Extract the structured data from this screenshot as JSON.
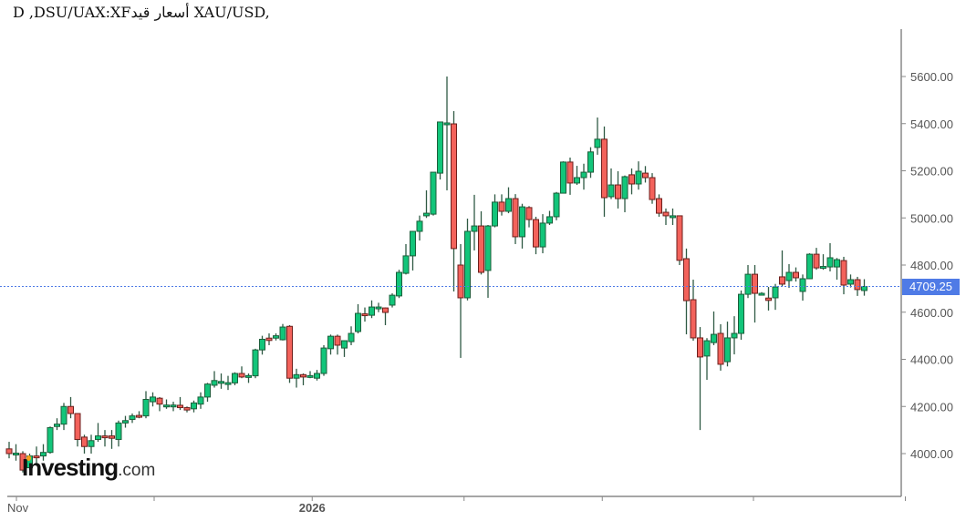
{
  "header": {
    "title": "D ,DSU/UAX:XFأسعار قيد XAU/USD,"
  },
  "logo": {
    "brand": "Investing",
    "domain": ".com"
  },
  "colors": {
    "up": "#12c57a",
    "up_border": "#1b5e3a",
    "down": "#f3625b",
    "down_border": "#6e1f1c",
    "wick": "#2f5a44",
    "last_price": "#4f7be6",
    "axis": "#888888"
  },
  "chart_data": {
    "type": "candlestick",
    "title": "",
    "ylim": [
      3880,
      5780
    ],
    "y_ticks": [
      4000,
      4200,
      4400,
      4600,
      4800,
      5000,
      5200,
      5400,
      5600
    ],
    "y_tick_labels": [
      "4000.00",
      "4200.00",
      "4400.00",
      "4600.00",
      "4800.00",
      "5000.00",
      "5200.00",
      "5400.00",
      "5600.00"
    ],
    "x_tick_labels": [
      "Nov",
      "",
      "2026",
      "",
      "",
      "",
      ""
    ],
    "last_price": 4709.25,
    "last_price_label": "4709.25",
    "grid": false,
    "ohlc_fields": [
      "open",
      "high",
      "low",
      "close"
    ],
    "candles": [
      [
        4020,
        4050,
        3980,
        4000
      ],
      [
        4000,
        4040,
        3970,
        4002
      ],
      [
        4000,
        4010,
        3920,
        3930
      ],
      [
        3940,
        4000,
        3930,
        3990
      ],
      [
        3990,
        4030,
        3960,
        3985
      ],
      [
        3990,
        4040,
        3970,
        4005
      ],
      [
        4005,
        4115,
        4000,
        4110
      ],
      [
        4115,
        4150,
        4100,
        4125
      ],
      [
        4125,
        4215,
        4100,
        4200
      ],
      [
        4200,
        4240,
        4150,
        4170
      ],
      [
        4170,
        4170,
        4030,
        4060
      ],
      [
        4070,
        4080,
        4000,
        4030
      ],
      [
        4030,
        4080,
        4000,
        4055
      ],
      [
        4060,
        4130,
        4050,
        4075
      ],
      [
        4075,
        4100,
        4030,
        4070
      ],
      [
        4075,
        4100,
        4020,
        4065
      ],
      [
        4060,
        4140,
        4030,
        4130
      ],
      [
        4130,
        4160,
        4110,
        4140
      ],
      [
        4145,
        4170,
        4130,
        4160
      ],
      [
        4162,
        4180,
        4150,
        4158
      ],
      [
        4160,
        4265,
        4150,
        4230
      ],
      [
        4220,
        4260,
        4200,
        4240
      ],
      [
        4235,
        4240,
        4180,
        4210
      ],
      [
        4204,
        4230,
        4190,
        4206
      ],
      [
        4204,
        4220,
        4180,
        4206
      ],
      [
        4205,
        4240,
        4185,
        4195
      ],
      [
        4195,
        4200,
        4175,
        4185
      ],
      [
        4190,
        4225,
        4175,
        4215
      ],
      [
        4210,
        4260,
        4190,
        4240
      ],
      [
        4240,
        4300,
        4220,
        4295
      ],
      [
        4290,
        4350,
        4280,
        4310
      ],
      [
        4304,
        4340,
        4275,
        4306
      ],
      [
        4299,
        4330,
        4270,
        4301
      ],
      [
        4300,
        4345,
        4290,
        4340
      ],
      [
        4340,
        4370,
        4320,
        4325
      ],
      [
        4329,
        4340,
        4300,
        4331
      ],
      [
        4330,
        4445,
        4320,
        4440
      ],
      [
        4440,
        4500,
        4420,
        4485
      ],
      [
        4490,
        4510,
        4460,
        4480
      ],
      [
        4490,
        4510,
        4480,
        4500
      ],
      [
        4483,
        4550,
        4480,
        4537
      ],
      [
        4540,
        4545,
        4300,
        4320
      ],
      [
        4320,
        4360,
        4280,
        4335
      ],
      [
        4335,
        4340,
        4290,
        4325
      ],
      [
        4329,
        4350,
        4320,
        4331
      ],
      [
        4320,
        4355,
        4310,
        4340
      ],
      [
        4340,
        4460,
        4330,
        4448
      ],
      [
        4445,
        4505,
        4420,
        4498
      ],
      [
        4498,
        4505,
        4420,
        4460
      ],
      [
        4448,
        4480,
        4410,
        4479
      ],
      [
        4475,
        4540,
        4460,
        4510
      ],
      [
        4518,
        4634,
        4510,
        4595
      ],
      [
        4593,
        4620,
        4560,
        4589
      ],
      [
        4587,
        4650,
        4575,
        4622
      ],
      [
        4619,
        4640,
        4600,
        4622
      ],
      [
        4618,
        4620,
        4545,
        4599
      ],
      [
        4630,
        4680,
        4620,
        4672
      ],
      [
        4669,
        4780,
        4660,
        4769
      ],
      [
        4765,
        4889,
        4760,
        4839
      ],
      [
        4839,
        4945,
        4777,
        4943
      ],
      [
        4943,
        5010,
        4904,
        4986
      ],
      [
        5009,
        5117,
        5000,
        5020
      ],
      [
        5016,
        5194,
        5010,
        5194
      ],
      [
        5190,
        5407,
        5163,
        5407
      ],
      [
        5401,
        5600,
        5117,
        5403
      ],
      [
        5399,
        5453,
        4688,
        4870
      ],
      [
        4800,
        4889,
        4406,
        4661
      ],
      [
        4661,
        4997,
        4650,
        4943
      ],
      [
        4943,
        5098,
        4862,
        4966
      ],
      [
        4966,
        5028,
        4760,
        4769
      ],
      [
        4777,
        4970,
        4661,
        4966
      ],
      [
        4966,
        5100,
        4960,
        5067
      ],
      [
        5067,
        5100,
        5010,
        5028
      ],
      [
        5028,
        5130,
        5020,
        5082
      ],
      [
        5082,
        5101,
        4889,
        4920
      ],
      [
        4920,
        5060,
        4870,
        5047
      ],
      [
        5044,
        5050,
        4960,
        4993
      ],
      [
        4993,
        5005,
        4846,
        4877
      ],
      [
        4877,
        5016,
        4850,
        4978
      ],
      [
        4978,
        5030,
        4970,
        5005
      ],
      [
        5005,
        5110,
        4990,
        5105
      ],
      [
        5105,
        5240,
        5105,
        5237
      ],
      [
        5237,
        5256,
        5098,
        5148
      ],
      [
        5148,
        5221,
        5140,
        5171
      ],
      [
        5171,
        5230,
        5120,
        5194
      ],
      [
        5194,
        5300,
        5170,
        5280
      ],
      [
        5299,
        5426,
        5268,
        5334
      ],
      [
        5334,
        5388,
        5005,
        5086
      ],
      [
        5090,
        5210,
        5080,
        5140
      ],
      [
        5140,
        5198,
        5040,
        5082
      ],
      [
        5082,
        5180,
        5024,
        5175
      ],
      [
        5183,
        5210,
        5100,
        5144
      ],
      [
        5144,
        5240,
        5120,
        5198
      ],
      [
        5190,
        5220,
        5150,
        5171
      ],
      [
        5171,
        5190,
        5060,
        5078
      ],
      [
        5082,
        5100,
        5005,
        5020
      ],
      [
        5024,
        5040,
        4970,
        5009
      ],
      [
        5007,
        5040,
        4970,
        5009
      ],
      [
        5009,
        5010,
        4800,
        4820
      ],
      [
        4827,
        4870,
        4506,
        4649
      ],
      [
        4653,
        4738,
        4479,
        4491
      ],
      [
        4491,
        4537,
        4100,
        4410
      ],
      [
        4414,
        4490,
        4313,
        4479
      ],
      [
        4471,
        4603,
        4460,
        4506
      ],
      [
        4510,
        4549,
        4352,
        4379
      ],
      [
        4390,
        4560,
        4370,
        4491
      ],
      [
        4491,
        4583,
        4421,
        4510
      ],
      [
        4510,
        4692,
        4483,
        4676
      ],
      [
        4676,
        4800,
        4660,
        4761
      ],
      [
        4761,
        4800,
        4556,
        4680
      ],
      [
        4680,
        4685,
        4675,
        4680
      ],
      [
        4660,
        4707,
        4607,
        4650
      ],
      [
        4661,
        4720,
        4610,
        4707
      ],
      [
        4750,
        4862,
        4710,
        4719
      ],
      [
        4734,
        4804,
        4703,
        4769
      ],
      [
        4769,
        4790,
        4730,
        4746
      ],
      [
        4688,
        4760,
        4649,
        4742
      ],
      [
        4742,
        4850,
        4740,
        4846
      ],
      [
        4846,
        4873,
        4780,
        4788
      ],
      [
        4792,
        4846,
        4780,
        4794
      ],
      [
        4792,
        4893,
        4773,
        4831
      ],
      [
        4792,
        4830,
        4738,
        4823
      ],
      [
        4819,
        4835,
        4676,
        4715
      ],
      [
        4719,
        4760,
        4705,
        4738
      ],
      [
        4738,
        4750,
        4669,
        4696
      ],
      [
        4692,
        4740,
        4670,
        4709.25
      ]
    ]
  }
}
